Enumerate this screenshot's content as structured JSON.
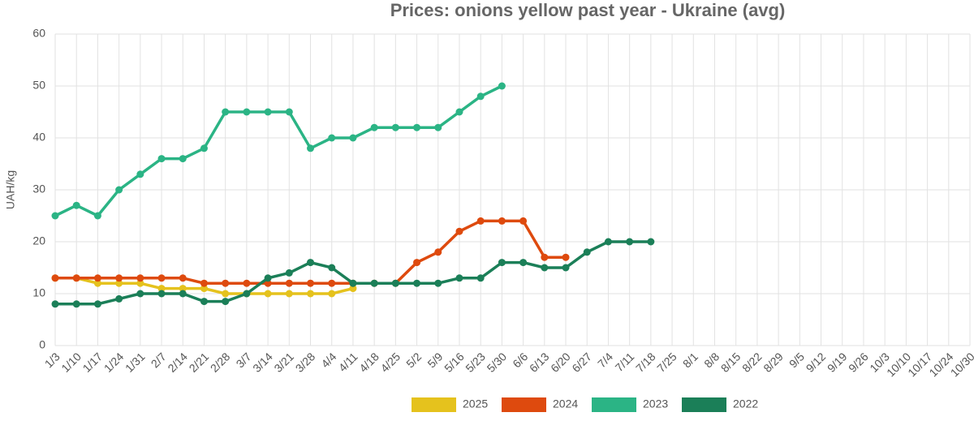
{
  "chart_data": {
    "type": "line",
    "title": "Prices: onions yellow past year - Ukraine (avg)",
    "y_label": "UAH/kg",
    "categories": [
      "1/3",
      "1/10",
      "1/17",
      "1/24",
      "1/31",
      "2/7",
      "2/14",
      "2/21",
      "2/28",
      "3/7",
      "3/14",
      "3/21",
      "3/28",
      "4/4",
      "4/11",
      "4/18",
      "4/25",
      "5/2",
      "5/9",
      "5/16",
      "5/23",
      "5/30",
      "6/6",
      "6/13",
      "6/20",
      "6/27",
      "7/4",
      "7/11",
      "7/18",
      "7/25",
      "8/1",
      "8/8",
      "8/15",
      "8/22",
      "8/29",
      "9/5",
      "9/12",
      "9/19",
      "9/26",
      "10/3",
      "10/10",
      "10/17",
      "10/24",
      "10/30"
    ],
    "series": [
      {
        "name": "2025",
        "color": "#e5c21d",
        "values": [
          13,
          13,
          12,
          12,
          12,
          11,
          11,
          11,
          10,
          10,
          10,
          10,
          10,
          10,
          11,
          null,
          null,
          null,
          null,
          null,
          null,
          null,
          null,
          null,
          null,
          null,
          null,
          null,
          null,
          null,
          null,
          null,
          null,
          null,
          null,
          null,
          null,
          null,
          null,
          null,
          null,
          null,
          null,
          null
        ]
      },
      {
        "name": "2024",
        "color": "#de4a0e",
        "values": [
          13,
          13,
          13,
          13,
          13,
          13,
          13,
          12,
          12,
          12,
          12,
          12,
          12,
          12,
          12,
          12,
          12,
          16,
          18,
          22,
          24,
          24,
          24,
          17,
          17,
          null,
          null,
          null,
          null,
          null,
          null,
          null,
          null,
          null,
          null,
          null,
          null,
          null,
          null,
          null,
          null,
          null,
          null,
          null
        ]
      },
      {
        "name": "2023",
        "color": "#2bb485",
        "values": [
          25,
          27,
          25,
          30,
          33,
          36,
          36,
          38,
          45,
          45,
          45,
          45,
          38,
          40,
          40,
          42,
          42,
          42,
          42,
          45,
          48,
          50,
          null,
          null,
          null,
          null,
          null,
          null,
          null,
          null,
          null,
          null,
          null,
          null,
          null,
          null,
          null,
          null,
          null,
          null,
          null,
          null,
          null,
          null
        ]
      },
      {
        "name": "2022",
        "color": "#1b7f58",
        "values": [
          8,
          8,
          8,
          9,
          10,
          10,
          10,
          8.5,
          8.5,
          10,
          13,
          14,
          16,
          15,
          12,
          12,
          12,
          12,
          12,
          13,
          13,
          16,
          16,
          15,
          15,
          18,
          20,
          20,
          20,
          null,
          null,
          null,
          null,
          null,
          null,
          null,
          null,
          null,
          null,
          null,
          null,
          null,
          null,
          null
        ]
      }
    ],
    "ylim": [
      0,
      60
    ],
    "yticks": [
      0,
      10,
      20,
      30,
      40,
      50,
      60
    ],
    "grid": true
  }
}
